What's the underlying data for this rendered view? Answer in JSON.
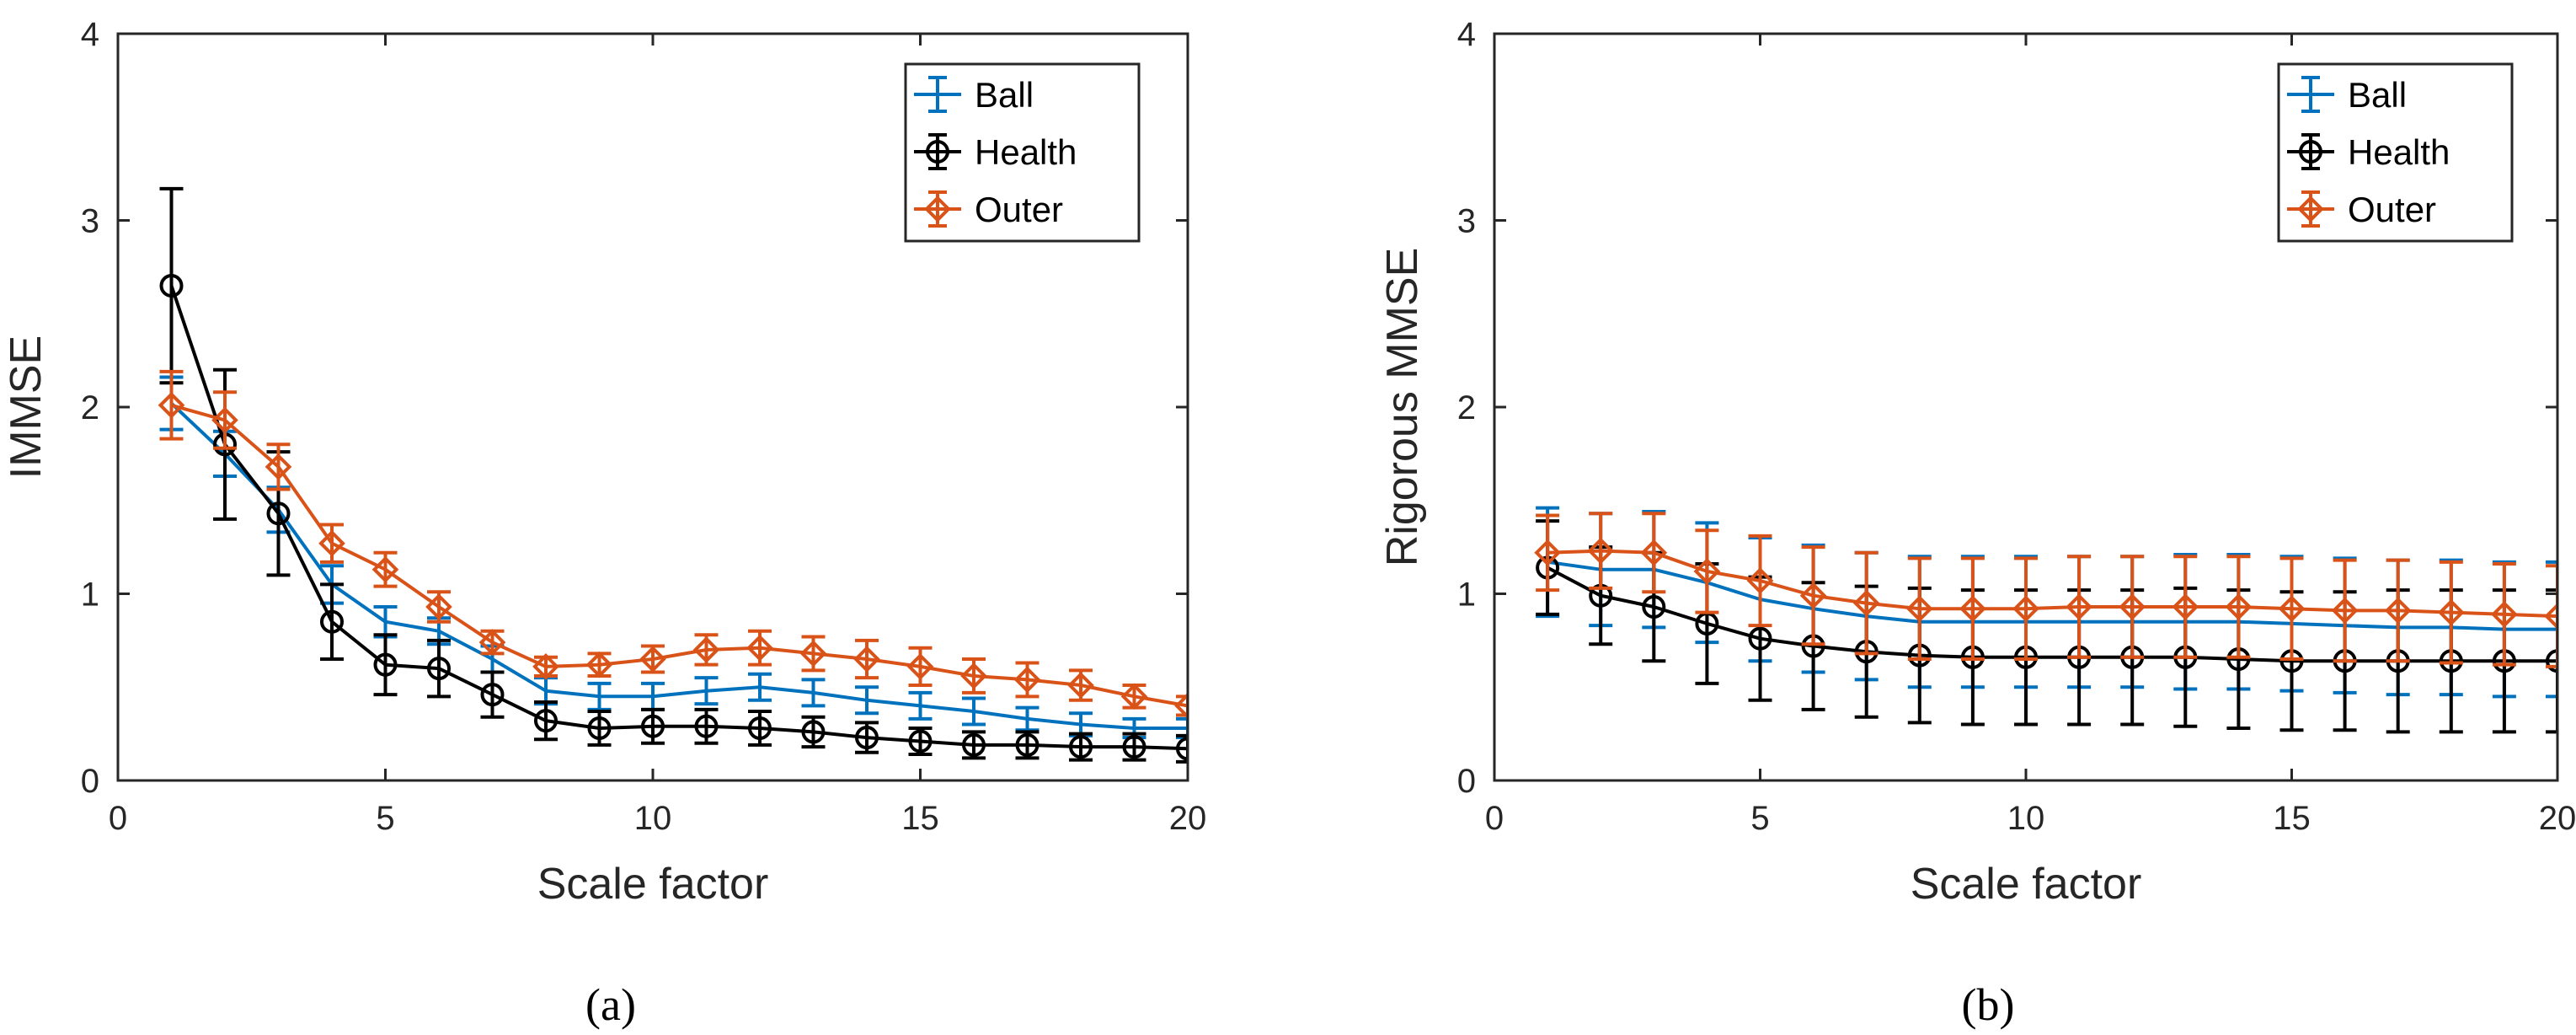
{
  "chart_data": [
    {
      "type": "line",
      "caption": "(a)",
      "xlabel": "Scale factor",
      "ylabel": "IMMSE",
      "xlim": [
        0,
        20
      ],
      "ylim": [
        0,
        4
      ],
      "xticks": [
        0,
        5,
        10,
        15,
        20
      ],
      "yticks": [
        0,
        1,
        2,
        3,
        4
      ],
      "grid": false,
      "legend_position": "top-right",
      "x": [
        1,
        2,
        3,
        4,
        5,
        6,
        7,
        8,
        9,
        10,
        11,
        12,
        13,
        14,
        15,
        16,
        17,
        18,
        19,
        20
      ],
      "series": [
        {
          "name": "Ball",
          "color": "#0072BD",
          "marker": "none",
          "values": [
            2.02,
            1.75,
            1.45,
            1.05,
            0.85,
            0.8,
            0.65,
            0.48,
            0.45,
            0.45,
            0.48,
            0.5,
            0.47,
            0.43,
            0.4,
            0.37,
            0.33,
            0.3,
            0.28,
            0.28
          ],
          "errors": [
            0.14,
            0.12,
            0.12,
            0.1,
            0.08,
            0.07,
            0.07,
            0.07,
            0.07,
            0.07,
            0.07,
            0.07,
            0.07,
            0.07,
            0.07,
            0.07,
            0.06,
            0.06,
            0.05,
            0.05
          ]
        },
        {
          "name": "Health",
          "color": "#000000",
          "marker": "circle",
          "values": [
            2.65,
            1.8,
            1.43,
            0.85,
            0.62,
            0.6,
            0.46,
            0.32,
            0.28,
            0.29,
            0.29,
            0.28,
            0.26,
            0.23,
            0.21,
            0.19,
            0.19,
            0.18,
            0.18,
            0.17
          ],
          "errors": [
            0.52,
            0.4,
            0.33,
            0.2,
            0.16,
            0.15,
            0.12,
            0.1,
            0.09,
            0.09,
            0.09,
            0.09,
            0.08,
            0.08,
            0.07,
            0.07,
            0.07,
            0.07,
            0.07,
            0.07
          ]
        },
        {
          "name": "Outer",
          "color": "#D95319",
          "marker": "diamond",
          "values": [
            2.01,
            1.93,
            1.68,
            1.27,
            1.13,
            0.93,
            0.74,
            0.61,
            0.62,
            0.65,
            0.7,
            0.71,
            0.68,
            0.65,
            0.61,
            0.56,
            0.54,
            0.51,
            0.45,
            0.4
          ],
          "errors": [
            0.18,
            0.15,
            0.12,
            0.1,
            0.09,
            0.08,
            0.06,
            0.05,
            0.06,
            0.07,
            0.08,
            0.09,
            0.09,
            0.1,
            0.1,
            0.09,
            0.09,
            0.08,
            0.06,
            0.05
          ]
        }
      ]
    },
    {
      "type": "line",
      "caption": "(b)",
      "xlabel": "Scale factor",
      "ylabel": "Rigorous MMSE",
      "xlim": [
        0,
        20
      ],
      "ylim": [
        0,
        4
      ],
      "xticks": [
        0,
        5,
        10,
        15,
        20
      ],
      "yticks": [
        0,
        1,
        2,
        3,
        4
      ],
      "grid": false,
      "legend_position": "top-right",
      "x": [
        1,
        2,
        3,
        4,
        5,
        6,
        7,
        8,
        9,
        10,
        11,
        12,
        13,
        14,
        15,
        16,
        17,
        18,
        19,
        20
      ],
      "series": [
        {
          "name": "Ball",
          "color": "#0072BD",
          "marker": "none",
          "values": [
            1.17,
            1.13,
            1.13,
            1.06,
            0.97,
            0.92,
            0.88,
            0.85,
            0.85,
            0.85,
            0.85,
            0.85,
            0.85,
            0.85,
            0.84,
            0.83,
            0.82,
            0.82,
            0.81,
            0.81
          ],
          "errors": [
            0.29,
            0.3,
            0.31,
            0.32,
            0.33,
            0.34,
            0.34,
            0.35,
            0.35,
            0.35,
            0.35,
            0.35,
            0.36,
            0.36,
            0.36,
            0.36,
            0.36,
            0.36,
            0.36,
            0.36
          ]
        },
        {
          "name": "Health",
          "color": "#000000",
          "marker": "circle",
          "values": [
            1.14,
            0.99,
            0.93,
            0.84,
            0.76,
            0.72,
            0.69,
            0.67,
            0.66,
            0.66,
            0.66,
            0.66,
            0.66,
            0.65,
            0.64,
            0.64,
            0.64,
            0.64,
            0.64,
            0.64
          ],
          "errors": [
            0.25,
            0.26,
            0.29,
            0.32,
            0.33,
            0.34,
            0.35,
            0.36,
            0.36,
            0.36,
            0.36,
            0.36,
            0.37,
            0.37,
            0.37,
            0.37,
            0.38,
            0.38,
            0.38,
            0.38
          ]
        },
        {
          "name": "Outer",
          "color": "#D95319",
          "marker": "diamond",
          "values": [
            1.22,
            1.23,
            1.22,
            1.12,
            1.07,
            0.99,
            0.95,
            0.92,
            0.92,
            0.92,
            0.93,
            0.93,
            0.93,
            0.93,
            0.92,
            0.91,
            0.91,
            0.9,
            0.89,
            0.88
          ],
          "errors": [
            0.2,
            0.2,
            0.21,
            0.22,
            0.24,
            0.26,
            0.27,
            0.27,
            0.27,
            0.27,
            0.27,
            0.27,
            0.27,
            0.27,
            0.27,
            0.27,
            0.27,
            0.27,
            0.27,
            0.27
          ]
        }
      ]
    }
  ]
}
